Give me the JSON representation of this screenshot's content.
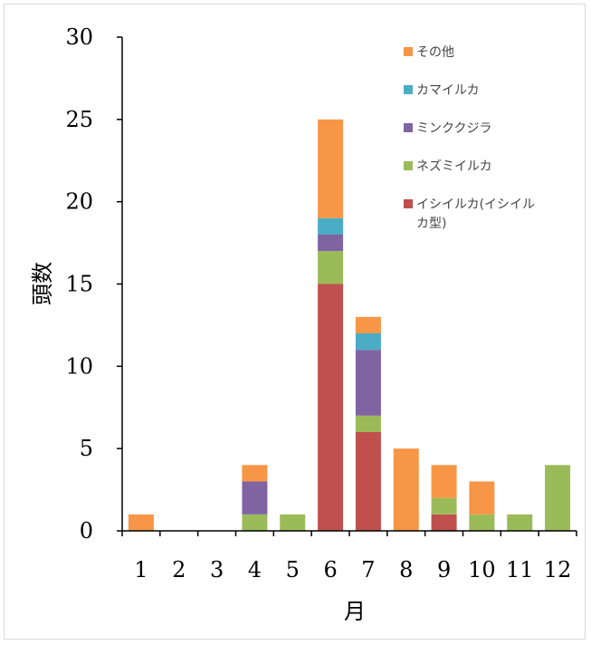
{
  "chart_data": {
    "type": "bar",
    "stacked": true,
    "title": "",
    "xlabel": "月",
    "ylabel": "頭数",
    "ylim": [
      0,
      30
    ],
    "yticks": [
      0,
      5,
      10,
      15,
      20,
      25,
      30
    ],
    "categories": [
      "1",
      "2",
      "3",
      "4",
      "5",
      "6",
      "7",
      "8",
      "9",
      "10",
      "11",
      "12"
    ],
    "series": [
      {
        "name": "イシイルカ(イシイルカ型)",
        "color": "#c0504d",
        "values": [
          0,
          0,
          0,
          0,
          0,
          15,
          6,
          0,
          1,
          0,
          0,
          0
        ]
      },
      {
        "name": "ネズミイルカ",
        "color": "#9bbb59",
        "values": [
          0,
          0,
          0,
          1,
          1,
          2,
          1,
          0,
          1,
          1,
          1,
          4
        ]
      },
      {
        "name": "ミンククジラ",
        "color": "#8064a2",
        "values": [
          0,
          0,
          0,
          2,
          0,
          1,
          4,
          0,
          0,
          0,
          0,
          0
        ]
      },
      {
        "name": "カマイルカ",
        "color": "#4bacc6",
        "values": [
          0,
          0,
          0,
          0,
          0,
          1,
          1,
          0,
          0,
          0,
          0,
          0
        ]
      },
      {
        "name": "その他",
        "color": "#f79646",
        "values": [
          1,
          0,
          0,
          1,
          0,
          6,
          1,
          5,
          2,
          2,
          0,
          0
        ]
      }
    ],
    "legend": {
      "position": "top-right",
      "entries": [
        {
          "label": "その他",
          "color": "#f79646"
        },
        {
          "label": "カマイルカ",
          "color": "#4bacc6"
        },
        {
          "label": "ミンククジラ",
          "color": "#8064a2"
        },
        {
          "label": "ネズミイルカ",
          "color": "#9bbb59"
        },
        {
          "label": "イシイルカ(イシイル",
          "label_line2": "カ型)",
          "color": "#c0504d"
        }
      ]
    },
    "grid": false
  }
}
